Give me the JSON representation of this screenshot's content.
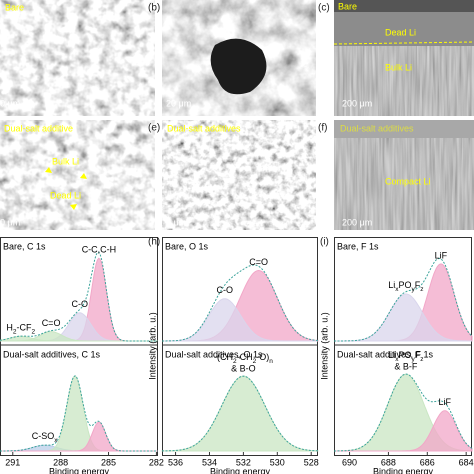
{
  "sem_panels": [
    {
      "texts": [
        "Bare",
        "0 μm"
      ]
    },
    {
      "label": "(b)",
      "texts": [
        "20 μm"
      ]
    },
    {
      "label": "(c)",
      "texts": [
        "Bare",
        "Dead Li",
        "Bulk Li",
        "200 μm"
      ]
    },
    {
      "texts": [
        "Dual-salt additive",
        "Bulk Li",
        "Dead Li",
        "0 μm"
      ]
    },
    {
      "label": "(e)",
      "texts": [
        "Dual-salt additives",
        "5 μm"
      ]
    },
    {
      "label": "(f)",
      "texts": [
        "Dual-salt additives",
        "Compact Li",
        "200 μm"
      ]
    }
  ],
  "chart_data": [
    {
      "type": "xps",
      "x_label": "Binding energy",
      "xlim": [
        291.8,
        281.9
      ],
      "xticks": [
        291,
        288,
        285,
        282
      ],
      "subplots": [
        {
          "title": "Bare, C 1s",
          "ylim": [
            0,
            1
          ],
          "peaks": [
            {
              "name": "C-C,C-H",
              "center": 285.6,
              "fwhm": 1.1,
              "height": 0.88,
              "color": "#f2a7c8"
            },
            {
              "name": "C-O",
              "center": 286.8,
              "fwhm": 1.6,
              "height": 0.3,
              "color": "#d9d5ec"
            },
            {
              "name": "C=O",
              "center": 288.6,
              "fwhm": 1.6,
              "height": 0.1,
              "color": "#c9e6c3"
            },
            {
              "name": [
                "H",
                "2",
                "-CF",
                "2"
              ],
              "center": 290.5,
              "fwhm": 1.6,
              "height": 0.05,
              "color": "#c9e6c3"
            }
          ]
        },
        {
          "title": "Dual-salt additives, C 1s",
          "ylim": [
            0,
            1
          ],
          "peaks": [
            {
              "name": [
                "C-SO",
                "x"
              ],
              "center": 289.0,
              "fwhm": 1.8,
              "height": 0.06,
              "color": "#b9cde8"
            },
            {
              "center": 287.1,
              "fwhm": 1.2,
              "height": 0.78,
              "color": "#c9e6c3"
            },
            {
              "center": 285.6,
              "fwhm": 1.0,
              "height": 0.3,
              "color": "#f2a7c8"
            }
          ]
        }
      ]
    },
    {
      "type": "xps",
      "panel_label": "(h)",
      "x_label": "Binding energy",
      "y_label": "Intensity (arb. u.)",
      "xlim": [
        536.8,
        527.6
      ],
      "xticks": [
        536,
        534,
        532,
        530,
        528
      ],
      "subplots": [
        {
          "title": "Bare, O 1s",
          "ylim": [
            0,
            1
          ],
          "peaks": [
            {
              "name": "C=O",
              "center": 531.1,
              "fwhm": 2.6,
              "height": 0.75,
              "color": "#f2a7c8"
            },
            {
              "name": "C-O",
              "center": 533.1,
              "fwhm": 2.2,
              "height": 0.45,
              "color": "#d9d5ec"
            }
          ]
        },
        {
          "title": "Dual-salt additives, O 1s",
          "ylim": [
            0,
            1
          ],
          "peaks": [
            {
              "name": [
                "-(CH",
                "2",
                "-CH",
                "2",
                "-O)",
                "n"
              ],
              "note": "& B-O",
              "center": 532.0,
              "fwhm": 3.0,
              "height": 0.78,
              "color": "#c9e6c3"
            }
          ]
        }
      ]
    },
    {
      "type": "xps",
      "panel_label": "(i)",
      "x_label": "Binding energy",
      "y_label": "Intensity (arb. u.)",
      "xlim": [
        690.8,
        683.7
      ],
      "xticks": [
        690,
        688,
        686,
        684
      ],
      "subplots": [
        {
          "title": "Bare, F 1s",
          "ylim": [
            0,
            1
          ],
          "peaks": [
            {
              "name": "LiF",
              "center": 685.3,
              "fwhm": 1.6,
              "height": 0.82,
              "color": "#f2a7c8"
            },
            {
              "name": [
                "Li",
                "x",
                "PO",
                "y",
                "F",
                "z"
              ],
              "center": 687.1,
              "fwhm": 2.0,
              "height": 0.5,
              "color": "#d9d5ec"
            }
          ]
        },
        {
          "title": "Dual-salt additives, F 1s",
          "ylim": [
            0,
            1
          ],
          "peaks": [
            {
              "name": [
                "Li",
                "x",
                "PO",
                "y",
                "F",
                "z"
              ],
              "note": "& B-F",
              "center": 687.1,
              "fwhm": 2.2,
              "height": 0.8,
              "color": "#c9e6c3"
            },
            {
              "name": "LiF",
              "center": 685.1,
              "fwhm": 1.4,
              "height": 0.42,
              "color": "#f2a7c8"
            }
          ]
        }
      ]
    }
  ]
}
